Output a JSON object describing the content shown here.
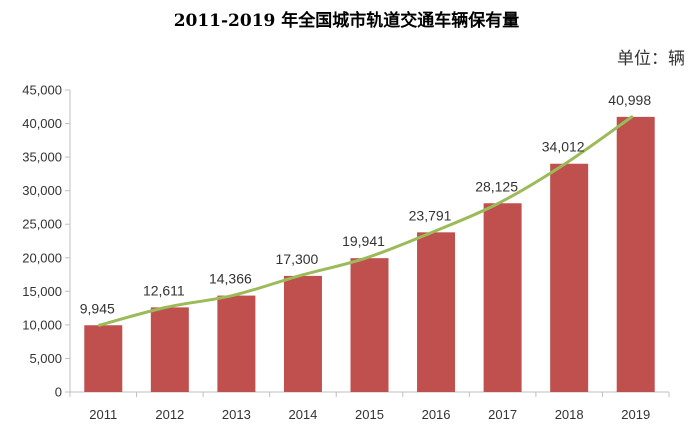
{
  "unit_label": "单位：辆",
  "chart_data": {
    "type": "bar",
    "title": "2011-2019 年全国城市轨道交通车辆保有量",
    "xlabel": "",
    "ylabel": "",
    "categories": [
      "2011",
      "2012",
      "2013",
      "2014",
      "2015",
      "2016",
      "2017",
      "2018",
      "2019"
    ],
    "values": [
      9945,
      12611,
      14366,
      17300,
      19941,
      23791,
      28125,
      34012,
      40998
    ],
    "data_labels": [
      "9,945",
      "12,611",
      "14,366",
      "17,300",
      "19,941",
      "23,791",
      "28,125",
      "34,012",
      "40,998"
    ],
    "overlay": "trend-line",
    "ylim": [
      0,
      45000
    ],
    "yticks": [
      0,
      5000,
      10000,
      15000,
      20000,
      25000,
      30000,
      35000,
      40000,
      45000
    ],
    "ytick_labels": [
      "0",
      "5,000",
      "10,000",
      "15,000",
      "20,000",
      "25,000",
      "30,000",
      "35,000",
      "40,000",
      "45,000"
    ],
    "grid": false,
    "legend": "none",
    "colors": {
      "bar": "#c0504d",
      "line": "#9bbb59",
      "axis": "#bfbfbf"
    }
  }
}
